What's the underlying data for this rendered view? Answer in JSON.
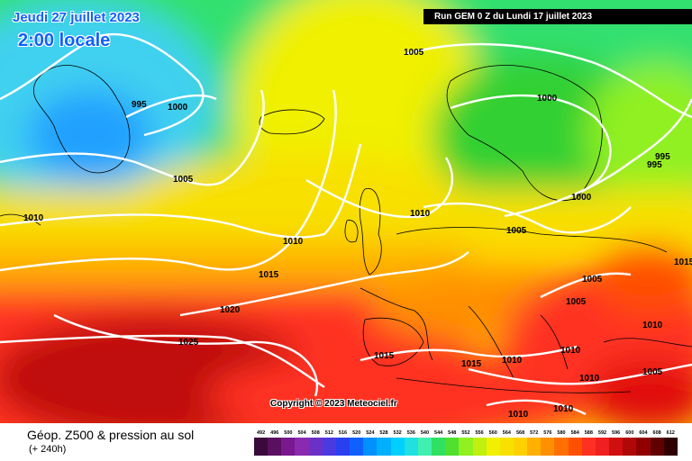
{
  "header": {
    "date_title": "Jeudi 27 juillet 2023",
    "local_time": "2:00 locale",
    "run_info": "Run GEM 0 Z du Lundi 17 juillet 2023"
  },
  "copyright": "Copyright © 2023 Meteociel.fr",
  "footer": {
    "product_title": "Géop. Z500 & pression au sol",
    "forecast_range": "(+ 240h)"
  },
  "isobar_labels": [
    "995",
    "1000",
    "1005",
    "1005",
    "1000",
    "995",
    "995",
    "1010",
    "1005",
    "1010",
    "1000",
    "1010",
    "1015",
    "1005",
    "1005",
    "1020",
    "1025",
    "1015",
    "1015",
    "1010",
    "1010",
    "1010",
    "1010",
    "1010",
    "1010",
    "1005",
    "1015"
  ],
  "legend": {
    "values": [
      "492",
      "496",
      "500",
      "504",
      "508",
      "512",
      "516",
      "520",
      "524",
      "528",
      "532",
      "536",
      "540",
      "544",
      "548",
      "552",
      "556",
      "560",
      "564",
      "568",
      "572",
      "576",
      "580",
      "584",
      "588",
      "592",
      "596",
      "600",
      "604",
      "608",
      "612"
    ],
    "colors": [
      "#3a0a3a",
      "#5a1060",
      "#7a1890",
      "#8a2ab0",
      "#6a30c8",
      "#4a3ae0",
      "#2a40f0",
      "#1060ff",
      "#0090ff",
      "#00b0ff",
      "#00d0ff",
      "#20e0e0",
      "#40f0b0",
      "#30e060",
      "#50e030",
      "#90f020",
      "#c0f010",
      "#f0f000",
      "#f8e000",
      "#ffd000",
      "#ffb000",
      "#ff9000",
      "#ff7000",
      "#ff5000",
      "#ff3020",
      "#f02020",
      "#d01010",
      "#b00808",
      "#900000",
      "#600000",
      "#300000"
    ]
  },
  "colors": {
    "isobar": "#ffffff",
    "title_blue": "#1060ff",
    "run_box_bg": "#000000"
  }
}
